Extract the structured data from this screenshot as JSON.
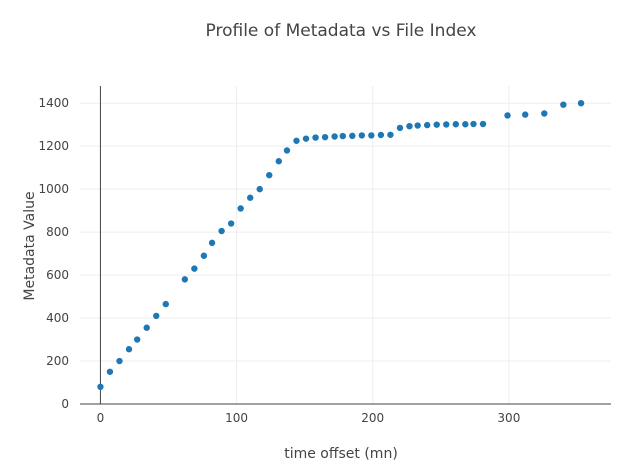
{
  "chart_data": {
    "type": "scatter",
    "title": "Profile of Metadata vs File Index",
    "xlabel": "time offset (mn)",
    "ylabel": "Metadata Value",
    "xlim": [
      -15,
      375
    ],
    "ylim": [
      0,
      1480
    ],
    "x_ticks": [
      0,
      100,
      200,
      300
    ],
    "y_ticks": [
      0,
      200,
      400,
      600,
      800,
      1000,
      1200,
      1400
    ],
    "grid": true,
    "legend": "none",
    "marker_color": "#1f77b4",
    "series": [
      {
        "points": [
          [
            0,
            80
          ],
          [
            7,
            150
          ],
          [
            14,
            200
          ],
          [
            21,
            255
          ],
          [
            27,
            300
          ],
          [
            34,
            355
          ],
          [
            41,
            410
          ],
          [
            48,
            465
          ],
          [
            62,
            580
          ],
          [
            69,
            630
          ],
          [
            76,
            690
          ],
          [
            82,
            750
          ],
          [
            89,
            805
          ],
          [
            96,
            840
          ],
          [
            103,
            910
          ],
          [
            110,
            960
          ],
          [
            117,
            1000
          ],
          [
            124,
            1065
          ],
          [
            131,
            1130
          ],
          [
            137,
            1180
          ],
          [
            144,
            1225
          ],
          [
            151,
            1235
          ],
          [
            158,
            1240
          ],
          [
            165,
            1242
          ],
          [
            172,
            1245
          ],
          [
            178,
            1247
          ],
          [
            185,
            1248
          ],
          [
            192,
            1250
          ],
          [
            199,
            1250
          ],
          [
            206,
            1252
          ],
          [
            213,
            1253
          ],
          [
            220,
            1285
          ],
          [
            227,
            1293
          ],
          [
            233,
            1296
          ],
          [
            240,
            1298
          ],
          [
            247,
            1300
          ],
          [
            254,
            1301
          ],
          [
            261,
            1302
          ],
          [
            268,
            1302
          ],
          [
            274,
            1303
          ],
          [
            281,
            1303
          ],
          [
            299,
            1343
          ],
          [
            312,
            1347
          ],
          [
            326,
            1352
          ],
          [
            340,
            1393
          ],
          [
            353,
            1400
          ]
        ]
      }
    ]
  }
}
